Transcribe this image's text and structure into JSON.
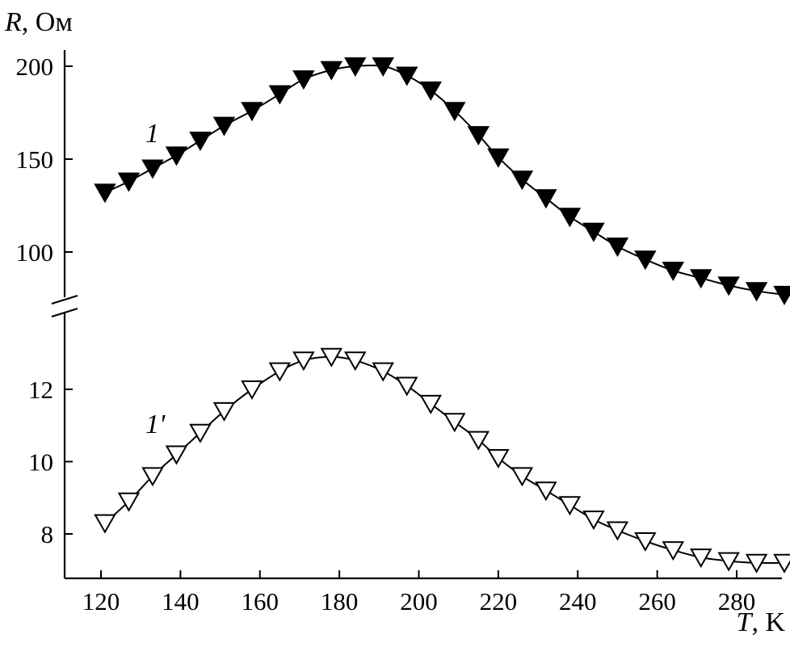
{
  "chart_data": {
    "type": "line",
    "xlabel_symbol": "T",
    "xlabel_unit": ", K",
    "ylabel_symbol": "R",
    "ylabel_unit": ", Ом",
    "xlim": [
      110,
      297
    ],
    "x_ticks": [
      120,
      140,
      160,
      180,
      200,
      220,
      240,
      260,
      280
    ],
    "grid": false,
    "broken_y_axis": true,
    "panels": [
      {
        "id": "upper",
        "ylim": [
          75,
          205
        ],
        "y_ticks": [
          100,
          150,
          200
        ]
      },
      {
        "id": "lower",
        "ylim": [
          7.0,
          14.0
        ],
        "y_ticks": [
          8,
          10,
          12
        ]
      }
    ],
    "series": [
      {
        "name": "1",
        "panel": "upper",
        "marker": "filled-down-triangle",
        "x": [
          121,
          127,
          133,
          139,
          145,
          151,
          158,
          165,
          171,
          178,
          184,
          191,
          197,
          203,
          209,
          215,
          220,
          226,
          232,
          238,
          244,
          250,
          257,
          264,
          271,
          278,
          285,
          292
        ],
        "y": [
          132,
          138,
          145,
          152,
          160,
          168,
          176,
          185,
          193,
          198,
          200,
          200,
          195,
          187,
          176,
          163,
          151,
          139,
          129,
          119,
          111,
          103,
          96,
          90,
          86,
          82,
          79,
          77
        ]
      },
      {
        "name": "1'",
        "panel": "lower",
        "marker": "open-down-triangle",
        "x": [
          121,
          127,
          133,
          139,
          145,
          151,
          158,
          165,
          171,
          178,
          184,
          191,
          197,
          203,
          209,
          215,
          220,
          226,
          232,
          238,
          244,
          250,
          257,
          264,
          271,
          278,
          285,
          292
        ],
        "y": [
          8.3,
          8.9,
          9.6,
          10.2,
          10.8,
          11.4,
          12.0,
          12.5,
          12.8,
          12.9,
          12.8,
          12.5,
          12.1,
          11.6,
          11.1,
          10.6,
          10.1,
          9.6,
          9.2,
          8.8,
          8.4,
          8.1,
          7.8,
          7.55,
          7.35,
          7.25,
          7.2,
          7.2
        ]
      }
    ]
  }
}
